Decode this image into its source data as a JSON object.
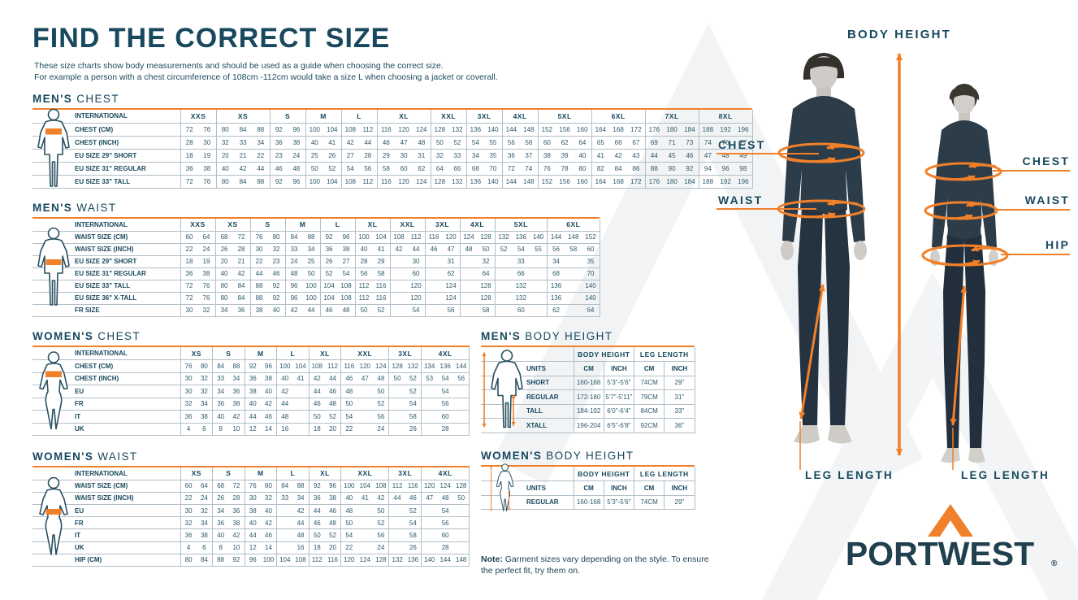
{
  "header": {
    "title": "FIND THE CORRECT SIZE",
    "subtitle1": "These size charts show body measurements and should be used as a guide when choosing the correct size.",
    "subtitle2": "For example a person with a chest circumference of 108cm -112cm would take a size L when choosing a jacket or coverall."
  },
  "annotations": {
    "body_height": "BODY HEIGHT",
    "chest_left": "CHEST",
    "waist_left": "WAIST",
    "chest_right": "CHEST",
    "waist_right": "WAIST",
    "hip_right": "HIP",
    "leg_length_left": "LEG LENGTH",
    "leg_length_right": "LEG LENGTH"
  },
  "note": {
    "label": "Note:",
    "text": "Garment sizes vary depending on the style. To ensure the perfect fit, try them on."
  },
  "brand": {
    "name": "PORTWEST",
    "registered": "®"
  },
  "colors": {
    "navy": "#17485e",
    "orange": "#f0802a",
    "logo_navy": "#20404f"
  },
  "size_tables": [
    {
      "id": "mens-chest",
      "heading_bold": "MEN'S",
      "heading_light": "CHEST",
      "icon": "male-chest",
      "corner_label": "INTERNATIONAL",
      "groups": [
        [
          "XXS",
          2
        ],
        [
          "XS",
          3
        ],
        [
          "S",
          2
        ],
        [
          "M",
          2
        ],
        [
          "L",
          2
        ],
        [
          "XL",
          3
        ],
        [
          "XXL",
          2
        ],
        [
          "3XL",
          2
        ],
        [
          "4XL",
          2
        ],
        [
          "5XL",
          3
        ],
        [
          "6XL",
          3
        ],
        [
          "7XL",
          3
        ],
        [
          "8XL",
          3
        ]
      ],
      "rows": [
        {
          "label": "CHEST (CM)",
          "cells": [
            "72",
            "76",
            "80",
            "84",
            "88",
            "92",
            "96",
            "100",
            "104",
            "108",
            "112",
            "116",
            "120",
            "124",
            "128",
            "132",
            "136",
            "140",
            "144",
            "148",
            "152",
            "156",
            "160",
            "164",
            "168",
            "172",
            "176",
            "180",
            "184",
            "188",
            "192",
            "196"
          ]
        },
        {
          "label": "CHEST (INCH)",
          "cells": [
            "28",
            "30",
            "32",
            "33",
            "34",
            "36",
            "38",
            "40",
            "41",
            "42",
            "44",
            "46",
            "47",
            "48",
            "50",
            "52",
            "54",
            "55",
            "56",
            "58",
            "60",
            "62",
            "64",
            "65",
            "66",
            "67",
            "69",
            "71",
            "73",
            "74",
            "76",
            "77"
          ]
        },
        {
          "label": "EU SIZE 29\" SHORT",
          "cells": [
            "18",
            "19",
            "20",
            "21",
            "22",
            "23",
            "24",
            "25",
            "26",
            "27",
            "28",
            "29",
            "30",
            "31",
            "32",
            "33",
            "34",
            "35",
            "36",
            "37",
            "38",
            "39",
            "40",
            "41",
            "42",
            "43",
            "44",
            "45",
            "46",
            "47",
            "48",
            "49"
          ]
        },
        {
          "label": "EU SIZE 31\" REGULAR",
          "cells": [
            "36",
            "38",
            "40",
            "42",
            "44",
            "46",
            "48",
            "50",
            "52",
            "54",
            "56",
            "58",
            "60",
            "62",
            "64",
            "66",
            "68",
            "70",
            "72",
            "74",
            "76",
            "78",
            "80",
            "82",
            "84",
            "86",
            "88",
            "90",
            "92",
            "94",
            "96",
            "98"
          ]
        },
        {
          "label": "EU SIZE 33\" TALL",
          "cells": [
            "72",
            "76",
            "80",
            "84",
            "88",
            "92",
            "96",
            "100",
            "104",
            "108",
            "112",
            "116",
            "120",
            "124",
            "128",
            "132",
            "136",
            "140",
            "144",
            "148",
            "152",
            "156",
            "160",
            "164",
            "168",
            "172",
            "176",
            "180",
            "184",
            "188",
            "192",
            "196"
          ]
        }
      ]
    },
    {
      "id": "mens-waist",
      "heading_bold": "MEN'S",
      "heading_light": "WAIST",
      "icon": "male-waist",
      "corner_label": "INTERNATIONAL",
      "groups": [
        [
          "XXS",
          2
        ],
        [
          "XS",
          2
        ],
        [
          "S",
          2
        ],
        [
          "M",
          2
        ],
        [
          "L",
          2
        ],
        [
          "XL",
          2
        ],
        [
          "XXL",
          2
        ],
        [
          "3XL",
          2
        ],
        [
          "4XL",
          2
        ],
        [
          "5XL",
          3
        ],
        [
          "6XL",
          3
        ]
      ],
      "rows": [
        {
          "label": "WAIST SIZE (CM)",
          "cells": [
            "60",
            "64",
            "68",
            "72",
            "76",
            "80",
            "84",
            "88",
            "92",
            "96",
            "100",
            "104",
            "108",
            "112",
            "116",
            "120",
            "124",
            "128",
            "132",
            "136",
            "140",
            "144",
            "148",
            "152"
          ]
        },
        {
          "label": "WAIST SIZE (INCH)",
          "cells": [
            "22",
            "24",
            "26",
            "28",
            "30",
            "32",
            "33",
            "34",
            "36",
            "38",
            "40",
            "41",
            "42",
            "44",
            "46",
            "47",
            "48",
            "50",
            "52",
            "54",
            "55",
            "56",
            "58",
            "60"
          ]
        },
        {
          "label": "EU SIZE 29\" SHORT",
          "cells": [
            "18",
            "19",
            "20",
            "21",
            "22",
            "23",
            "24",
            "25",
            "26",
            "27",
            "28",
            "29",
            "",
            "30",
            "",
            "31",
            "",
            "32",
            [
              "33",
              3
            ],
            "34",
            "",
            "35"
          ]
        },
        {
          "label": "EU SIZE 31\" REGULAR",
          "cells": [
            "36",
            "38",
            "40",
            "42",
            "44",
            "46",
            "48",
            "50",
            "52",
            "54",
            "56",
            "58",
            "",
            "60",
            "",
            "62",
            "",
            "64",
            [
              "66",
              3
            ],
            "68",
            "",
            "70"
          ]
        },
        {
          "label": "EU SIZE 33\" TALL",
          "cells": [
            "72",
            "76",
            "80",
            "84",
            "88",
            "92",
            "96",
            "100",
            "104",
            "108",
            "112",
            "116",
            "",
            "120",
            "",
            "124",
            "",
            "128",
            [
              "132",
              3
            ],
            "136",
            "",
            "140"
          ]
        },
        {
          "label": "EU SIZE 36\" X-TALL",
          "cells": [
            "72",
            "76",
            "80",
            "84",
            "88",
            "92",
            "96",
            "100",
            "104",
            "108",
            "112",
            "116",
            "",
            "120",
            "",
            "124",
            "",
            "128",
            [
              "132",
              3
            ],
            "136",
            "",
            "140"
          ]
        },
        {
          "label": "FR SIZE",
          "cells": [
            "30",
            "32",
            "34",
            "36",
            "38",
            "40",
            "42",
            "44",
            "46",
            "48",
            "50",
            "52",
            "",
            "54",
            "",
            "56",
            "",
            "58",
            [
              "60",
              3
            ],
            "62",
            "",
            "64"
          ]
        }
      ]
    },
    {
      "id": "womens-chest",
      "heading_bold": "WOMEN'S",
      "heading_light": "CHEST",
      "icon": "female-chest",
      "corner_label": "INTERNATIONAL",
      "groups": [
        [
          "XS",
          2
        ],
        [
          "S",
          2
        ],
        [
          "M",
          2
        ],
        [
          "L",
          2
        ],
        [
          "XL",
          2
        ],
        [
          "XXL",
          3
        ],
        [
          "3XL",
          2
        ],
        [
          "4XL",
          3
        ]
      ],
      "rows": [
        {
          "label": "CHEST (CM)",
          "cells": [
            "76",
            "80",
            "84",
            "88",
            "92",
            "96",
            "100",
            "104",
            "108",
            "112",
            "116",
            "120",
            "124",
            "128",
            "132",
            "134",
            "136",
            "144"
          ]
        },
        {
          "label": "CHEST (INCH)",
          "cells": [
            "30",
            "32",
            "33",
            "34",
            "36",
            "38",
            "40",
            "41",
            "42",
            "44",
            "46",
            "47",
            "48",
            "50",
            "52",
            "53",
            "54",
            "56"
          ]
        },
        {
          "label": "EU",
          "cells": [
            "30",
            "32",
            "34",
            "36",
            "38",
            "40",
            "42",
            "",
            "44",
            "46",
            "48",
            "",
            "50",
            "",
            "52",
            [
              "54",
              3
            ]
          ]
        },
        {
          "label": "FR",
          "cells": [
            "32",
            "34",
            "36",
            "38",
            "40",
            "42",
            "44",
            "",
            "46",
            "48",
            "50",
            "",
            "52",
            "",
            "54",
            [
              "56",
              3
            ]
          ]
        },
        {
          "label": "IT",
          "cells": [
            "36",
            "38",
            "40",
            "42",
            "44",
            "46",
            "48",
            "",
            "50",
            "52",
            "54",
            "",
            "56",
            "",
            "58",
            [
              "60",
              3
            ]
          ]
        },
        {
          "label": "UK",
          "cells": [
            "4",
            "6",
            "8",
            "10",
            "12",
            "14",
            "16",
            "",
            "18",
            "20",
            "22",
            "",
            "24",
            "",
            "26",
            [
              "28",
              3
            ]
          ]
        }
      ]
    },
    {
      "id": "womens-waist",
      "heading_bold": "WOMEN'S",
      "heading_light": "WAIST",
      "icon": "female-waist",
      "corner_label": "INTERNATIONAL",
      "groups": [
        [
          "XS",
          2
        ],
        [
          "S",
          2
        ],
        [
          "M",
          2
        ],
        [
          "L",
          2
        ],
        [
          "XL",
          2
        ],
        [
          "XXL",
          3
        ],
        [
          "3XL",
          2
        ],
        [
          "4XL",
          3
        ]
      ],
      "rows": [
        {
          "label": "WAIST SIZE (CM)",
          "cells": [
            "60",
            "64",
            "68",
            "72",
            "76",
            "80",
            "84",
            "88",
            "92",
            "96",
            "100",
            "104",
            "108",
            "112",
            "116",
            "120",
            "124",
            "128"
          ]
        },
        {
          "label": "WAIST SIZE (INCH)",
          "cells": [
            "22",
            "24",
            "26",
            "28",
            "30",
            "32",
            "33",
            "34",
            "36",
            "38",
            "40",
            "41",
            "42",
            "44",
            "46",
            "47",
            "48",
            "50"
          ]
        },
        {
          "label": "EU",
          "cells": [
            "30",
            "32",
            "34",
            "36",
            "38",
            "40",
            "",
            "42",
            "44",
            "46",
            "48",
            "",
            "50",
            "",
            "52",
            [
              "54",
              3
            ]
          ]
        },
        {
          "label": "FR",
          "cells": [
            "32",
            "34",
            "36",
            "38",
            "40",
            "42",
            "",
            "44",
            "46",
            "48",
            "50",
            "",
            "52",
            "",
            "54",
            [
              "56",
              3
            ]
          ]
        },
        {
          "label": "IT",
          "cells": [
            "36",
            "38",
            "40",
            "42",
            "44",
            "46",
            "",
            "48",
            "50",
            "52",
            "54",
            "",
            "56",
            "",
            "58",
            [
              "60",
              3
            ]
          ]
        },
        {
          "label": "UK",
          "cells": [
            "4",
            "6",
            "8",
            "10",
            "12",
            "14",
            "",
            "16",
            "18",
            "20",
            "22",
            "",
            "24",
            "",
            "26",
            [
              "28",
              3
            ]
          ]
        },
        {
          "label": "HIP (CM)",
          "cells": [
            "80",
            "84",
            "88",
            "92",
            "96",
            "100",
            "104",
            "108",
            "112",
            "116",
            "120",
            "124",
            "128",
            "132",
            "136",
            "140",
            "144",
            "148"
          ]
        }
      ]
    }
  ],
  "height_tables": [
    {
      "id": "mens-body-height",
      "heading_bold": "MEN'S",
      "heading_light": "BODY HEIGHT",
      "icon": "male-height",
      "units_label": "UNITS",
      "col_headers": [
        "BODY HEIGHT",
        "LEG LENGTH"
      ],
      "unit_cols": [
        "CM",
        "INCH",
        "CM",
        "INCH"
      ],
      "rows": [
        {
          "label": "SHORT",
          "cells": [
            "160-168",
            "5'3\"-5'6\"",
            "74CM",
            "29\""
          ]
        },
        {
          "label": "REGULAR",
          "cells": [
            "172-180",
            "5'7\"-5'11\"",
            "79CM",
            "31\""
          ]
        },
        {
          "label": "TALL",
          "cells": [
            "184-192",
            "6'0\"-6'4\"",
            "84CM",
            "33\""
          ]
        },
        {
          "label": "XTALL",
          "cells": [
            "196-204",
            "6'5\"-6'8\"",
            "92CM",
            "36\""
          ]
        }
      ]
    },
    {
      "id": "womens-body-height",
      "heading_bold": "WOMEN'S",
      "heading_light": "BODY HEIGHT",
      "icon": "female-height",
      "units_label": "UNITS",
      "col_headers": [
        "BODY HEIGHT",
        "LEG LENGTH"
      ],
      "unit_cols": [
        "CM",
        "INCH",
        "CM",
        "INCH"
      ],
      "rows": [
        {
          "label": "REGULAR",
          "cells": [
            "160-168",
            "5'3\"-5'6\"",
            "74CM",
            "29\""
          ]
        }
      ]
    }
  ]
}
